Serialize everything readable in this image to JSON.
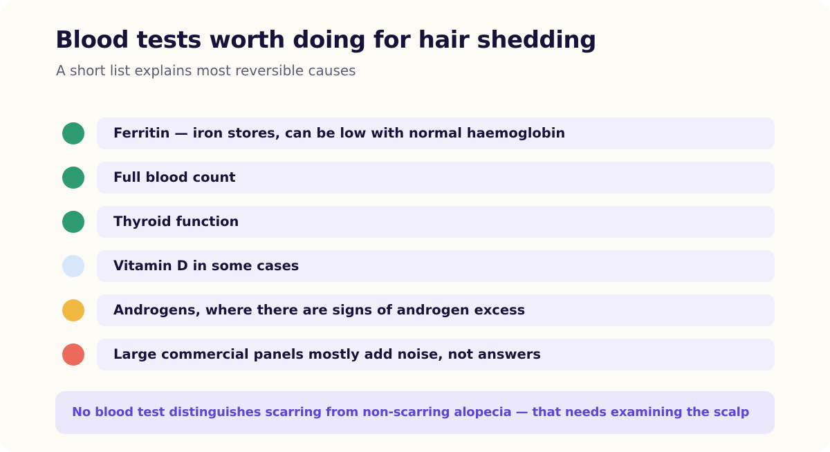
{
  "header": {
    "title": "Blood tests worth doing for hair shedding",
    "subtitle": "A short list explains most reversible causes"
  },
  "status_colors": {
    "recommended": "#2e9a70",
    "optional": "#d7e6fb",
    "conditional": "#f2b942",
    "not_recommended": "#eb6a5c"
  },
  "items": [
    {
      "label": "Ferritin — iron stores, can be low with normal haemoglobin",
      "status": "recommended"
    },
    {
      "label": "Full blood count",
      "status": "recommended"
    },
    {
      "label": "Thyroid function",
      "status": "recommended"
    },
    {
      "label": "Vitamin D in some cases",
      "status": "optional"
    },
    {
      "label": "Androgens, where there are signs of androgen excess",
      "status": "conditional"
    },
    {
      "label": "Large commercial panels mostly add noise, not answers",
      "status": "not_recommended"
    }
  ],
  "footer": {
    "note": "No blood test distinguishes scarring from non-scarring alopecia — that needs examining the scalp"
  }
}
